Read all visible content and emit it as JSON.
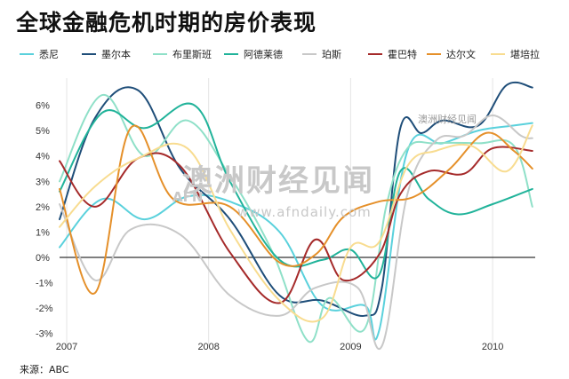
{
  "chart_data": {
    "type": "line",
    "title": "全球金融危机时期的房价表现",
    "xlabel": "",
    "ylabel": "",
    "ylim": [
      -3.5,
      7
    ],
    "yticks": [
      -3,
      -2,
      -1,
      0,
      1,
      2,
      3,
      4,
      5,
      6
    ],
    "ytick_labels": [
      "-3%",
      "-2%",
      "-1%",
      "0%",
      "1%",
      "2%",
      "3%",
      "4%",
      "5%",
      "6%"
    ],
    "xlim": [
      2006.95,
      2010.3
    ],
    "xticks": [
      2007,
      2008,
      2009,
      2010
    ],
    "xtick_labels": [
      "2007",
      "2008",
      "2009",
      "2010"
    ],
    "grid": "vertical",
    "legend": "top",
    "series": [
      {
        "name": "悉尼",
        "color": "#5ad1dc",
        "x": [
          2006.95,
          2007.25,
          2007.55,
          2007.85,
          2008.15,
          2008.5,
          2008.8,
          2009.1,
          2009.2,
          2009.4,
          2009.65,
          2009.9,
          2010.15,
          2010.28
        ],
        "y": [
          0.4,
          2.3,
          1.5,
          2.4,
          2.2,
          1.0,
          -1.9,
          -1.9,
          -2.9,
          4.2,
          4.5,
          5.0,
          5.2,
          5.3
        ]
      },
      {
        "name": "墨尔本",
        "color": "#1f4e79",
        "x": [
          2006.95,
          2007.2,
          2007.5,
          2007.8,
          2008.15,
          2008.5,
          2008.8,
          2009.1,
          2009.22,
          2009.35,
          2009.5,
          2009.65,
          2009.9,
          2010.1,
          2010.28
        ],
        "y": [
          1.5,
          5.5,
          6.6,
          3.5,
          1.5,
          -1.5,
          -1.7,
          -2.3,
          -1.2,
          5.1,
          4.9,
          5.4,
          5.2,
          6.8,
          6.7
        ]
      },
      {
        "name": "布里斯班",
        "color": "#8fe0c8",
        "x": [
          2006.95,
          2007.25,
          2007.55,
          2007.85,
          2008.15,
          2008.45,
          2008.7,
          2008.85,
          2009.1,
          2009.25,
          2009.4,
          2009.6,
          2009.9,
          2010.15,
          2010.28
        ],
        "y": [
          3.0,
          6.4,
          4.0,
          5.4,
          3.2,
          0.2,
          -3.3,
          -1.6,
          -2.8,
          2.0,
          4.3,
          4.5,
          4.5,
          4.4,
          2.0
        ]
      },
      {
        "name": "阿德莱德",
        "color": "#21b39a",
        "x": [
          2006.95,
          2007.25,
          2007.55,
          2007.9,
          2008.15,
          2008.5,
          2008.8,
          2009.0,
          2009.2,
          2009.35,
          2009.55,
          2009.75,
          2010.0,
          2010.28
        ],
        "y": [
          2.6,
          5.7,
          5.1,
          6.0,
          3.0,
          -0.1,
          -0.1,
          0.3,
          -0.7,
          3.4,
          2.3,
          1.7,
          2.1,
          2.7
        ]
      },
      {
        "name": "珀斯",
        "color": "#c8c8c8",
        "x": [
          2006.95,
          2007.2,
          2007.45,
          2007.8,
          2008.15,
          2008.5,
          2008.75,
          2009.05,
          2009.22,
          2009.4,
          2009.6,
          2009.8,
          2010.0,
          2010.2,
          2010.28
        ],
        "y": [
          2.1,
          -0.9,
          1.1,
          0.9,
          -1.5,
          -2.3,
          -1.2,
          -1.2,
          -3.5,
          2.5,
          4.6,
          4.8,
          5.6,
          4.8,
          4.7
        ]
      },
      {
        "name": "霍巴特",
        "color": "#a52a2a",
        "x": [
          2006.95,
          2007.2,
          2007.5,
          2007.8,
          2008.15,
          2008.5,
          2008.75,
          2008.95,
          2009.2,
          2009.35,
          2009.55,
          2009.8,
          2010.0,
          2010.28
        ],
        "y": [
          3.8,
          2.0,
          3.9,
          3.6,
          0.2,
          -1.8,
          0.7,
          -0.9,
          0.1,
          2.5,
          3.4,
          3.3,
          4.3,
          4.2
        ]
      },
      {
        "name": "达尔文",
        "color": "#e5902a",
        "x": [
          2006.95,
          2007.2,
          2007.45,
          2007.75,
          2008.15,
          2008.5,
          2008.75,
          2008.95,
          2009.2,
          2009.45,
          2009.7,
          2009.95,
          2010.15,
          2010.28
        ],
        "y": [
          2.7,
          -1.4,
          5.1,
          2.3,
          2.0,
          -0.2,
          0.1,
          1.6,
          2.2,
          2.4,
          3.5,
          4.9,
          4.2,
          3.5
        ]
      },
      {
        "name": "堪培拉",
        "color": "#f8dc90",
        "x": [
          2006.95,
          2007.2,
          2007.5,
          2007.85,
          2008.15,
          2008.5,
          2008.8,
          2009.0,
          2009.2,
          2009.4,
          2009.6,
          2009.85,
          2010.1,
          2010.28
        ],
        "y": [
          1.2,
          2.8,
          3.9,
          4.3,
          1.1,
          -1.7,
          -2.4,
          0.4,
          0.6,
          3.6,
          4.2,
          4.4,
          3.4,
          5.2
        ]
      }
    ]
  },
  "source": "来源：ABC",
  "watermark": {
    "main": "澳洲财经见闻",
    "url": "www.afndaily.com",
    "badge": "AFN",
    "small": "澳洲财经见闻"
  }
}
